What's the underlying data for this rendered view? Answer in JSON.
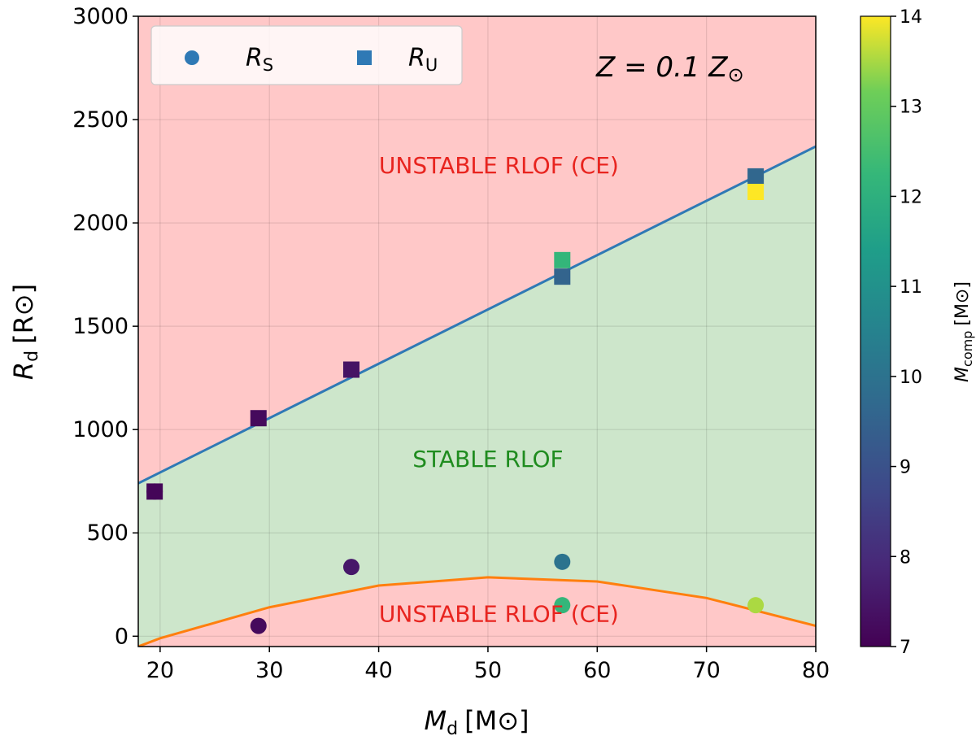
{
  "chart_data": {
    "type": "scatter",
    "title": "",
    "xlabel": {
      "main": "M",
      "sub": "d",
      "unit": "[M⊙]"
    },
    "ylabel": {
      "main": "R",
      "sub": "d",
      "unit": "[R⊙]"
    },
    "xlim": [
      18,
      80
    ],
    "ylim": [
      -50,
      3000
    ],
    "xticks": [
      20,
      30,
      40,
      50,
      60,
      70,
      80
    ],
    "yticks": [
      0,
      500,
      1000,
      1500,
      2000,
      2500,
      3000
    ],
    "grid": true,
    "annotation": {
      "main": "Z = 0.1 Z",
      "sub": "⊙"
    },
    "regions": [
      {
        "label": "UNSTABLE RLOF (CE)",
        "color": "#ffc8c8",
        "text_color": "#e8241f",
        "at": [
          51,
          2240
        ]
      },
      {
        "label": "STABLE RLOF",
        "color": "#cde6cb",
        "text_color": "#1f8c1f",
        "at": [
          50,
          820
        ]
      },
      {
        "label": "UNSTABLE RLOF (CE)",
        "color": "#ffc8c8",
        "text_color": "#e8241f",
        "at": [
          51,
          70
        ]
      }
    ],
    "series": [
      {
        "name": "R_S",
        "legend": {
          "main": "R",
          "sub": "S"
        },
        "marker": "circle",
        "x": [
          19.5,
          29,
          37.5,
          56.8,
          56.8,
          74.5
        ],
        "y": [
          700,
          50,
          335,
          360,
          150,
          150
        ],
        "mcomp": [
          7.1,
          7.2,
          7.5,
          10.0,
          12.2,
          13.5
        ]
      },
      {
        "name": "R_U",
        "legend": {
          "main": "R",
          "sub": "U"
        },
        "marker": "square",
        "x": [
          19.5,
          29,
          37.5,
          56.8,
          56.8,
          74.5,
          74.5
        ],
        "y": [
          700,
          1055,
          1290,
          1820,
          1740,
          2225,
          2150
        ],
        "mcomp": [
          7.1,
          7.2,
          7.4,
          12.2,
          9.5,
          9.6,
          14.0
        ]
      }
    ],
    "lines": [
      {
        "name": "upper boundary",
        "color": "#2f79b5",
        "x": [
          18,
          80
        ],
        "y": [
          740,
          2370
        ]
      },
      {
        "name": "lower boundary",
        "color": "#ff7f0e",
        "x": [
          18,
          20,
          30,
          40,
          50,
          60,
          70,
          80
        ],
        "y": [
          -50,
          -10,
          140,
          245,
          285,
          265,
          185,
          50
        ]
      }
    ],
    "colorbar": {
      "label": {
        "main": "M",
        "sub": "comp",
        "unit": "[M⊙]"
      },
      "range": [
        7,
        14
      ],
      "ticks": [
        7,
        8,
        9,
        10,
        11,
        12,
        13,
        14
      ],
      "colormap": "viridis"
    },
    "legend": {
      "placement": "upper-left"
    }
  }
}
